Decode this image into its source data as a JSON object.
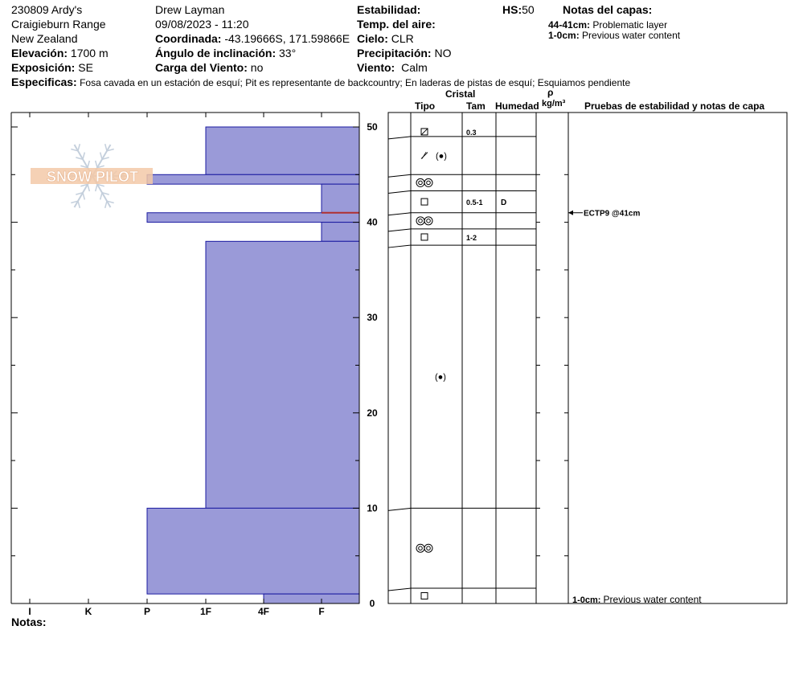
{
  "header": {
    "pit_name": "230809 Ardy's",
    "range": "Craigieburn Range",
    "country": "New Zealand",
    "elevation_label": "Elevación:",
    "elevation_value": "1700 m",
    "aspect_label": "Exposición:",
    "aspect_value": "SE",
    "observer": "Drew Layman",
    "datetime": "09/08/2023 - 11:20",
    "coord_label": "Coordinada:",
    "coord_value": "-43.19666S, 171.59866E",
    "slope_label": "Ángulo de inclinación:",
    "slope_value": "33°",
    "wind_load_label": "Carga del Viento:",
    "wind_load_value": "no",
    "stability_label": "Estabilidad:",
    "air_temp_label": "Temp. del aire:",
    "sky_label": "Cielo:",
    "sky_value": "CLR",
    "precip_label": "Precipitación:",
    "precip_value": "NO",
    "wind_label": "Viento:",
    "wind_value": "Calm",
    "hs_label": "HS:",
    "hs_value": "50",
    "layer_notes_title": "Notas del capas:",
    "layer_notes": [
      {
        "range": "44-41cm:",
        "text": "Problematic layer"
      },
      {
        "range": "1-0cm:",
        "text": "Previous water content"
      }
    ],
    "specifics_label": "Especificas:",
    "specifics_value": "Fosa cavada en un estación de esquí; Pit es representante de backcountry; En laderas de pistas de esquí; Esquiamos pendiente"
  },
  "columns": {
    "crystal": "Cristal",
    "type": "Tipo",
    "size": "Tam",
    "moisture": "Humedad",
    "rho": "ρ",
    "density_unit": "kg/m³",
    "tests": "Pruebas de estabilidad y notas de capa"
  },
  "watermark": "SNOW PILOT",
  "notes_label": "Notas:",
  "colors": {
    "hardness_fill": "#9a9ad8",
    "hardness_stroke": "#1a1aa0",
    "weak_layer_line": "#b03030",
    "watermark": "#f3c9a8"
  },
  "chart_data": {
    "type": "hardness-profile",
    "y_axis": {
      "range": [
        0,
        50
      ],
      "ticks": [
        0,
        10,
        20,
        30,
        40,
        50
      ],
      "unit": "cm"
    },
    "x_axis": {
      "categories": [
        "I",
        "K",
        "P",
        "1F",
        "4F",
        "F"
      ]
    },
    "hardness_layers": [
      {
        "top": 50,
        "bottom": 45,
        "hardness": "1F"
      },
      {
        "top": 45,
        "bottom": 44,
        "hardness": "P"
      },
      {
        "top": 44,
        "bottom": 41,
        "hardness": "F"
      },
      {
        "top": 41,
        "bottom": 40,
        "hardness": "P"
      },
      {
        "top": 40,
        "bottom": 38,
        "hardness": "F"
      },
      {
        "top": 38,
        "bottom": 10,
        "hardness": "1F"
      },
      {
        "top": 10,
        "bottom": 1,
        "hardness": "P"
      },
      {
        "top": 1,
        "bottom": 0,
        "hardness": "4F"
      }
    ],
    "weak_layer_depth": 41,
    "grain_rows": [
      {
        "top": 50,
        "bottom": 49,
        "symbol": "decomposing",
        "size": "0.3",
        "moisture": ""
      },
      {
        "top": 49,
        "bottom": 45,
        "symbol": "precip-decomp",
        "size": "",
        "moisture": ""
      },
      {
        "top": 45,
        "bottom": 43.3,
        "symbol": "rounded",
        "size": "",
        "moisture": ""
      },
      {
        "top": 43.3,
        "bottom": 41,
        "symbol": "faceted",
        "size": "0.5-1",
        "moisture": "D"
      },
      {
        "top": 41,
        "bottom": 39.3,
        "symbol": "rounded",
        "size": "",
        "moisture": ""
      },
      {
        "top": 39.3,
        "bottom": 37.6,
        "symbol": "faceted",
        "size": "1-2",
        "moisture": ""
      },
      {
        "top": 37.6,
        "bottom": 10,
        "symbol": "precip",
        "size": "",
        "moisture": ""
      },
      {
        "top": 10,
        "bottom": 1.6,
        "symbol": "rounded",
        "size": "",
        "moisture": ""
      },
      {
        "top": 1.6,
        "bottom": 0,
        "symbol": "faceted",
        "size": "",
        "moisture": ""
      }
    ],
    "stability_tests": [
      {
        "label": "ECTP9 @41cm",
        "depth": 41
      }
    ],
    "layer_note_bottom": {
      "range": "1-0cm:",
      "text": "Previous water content"
    }
  }
}
